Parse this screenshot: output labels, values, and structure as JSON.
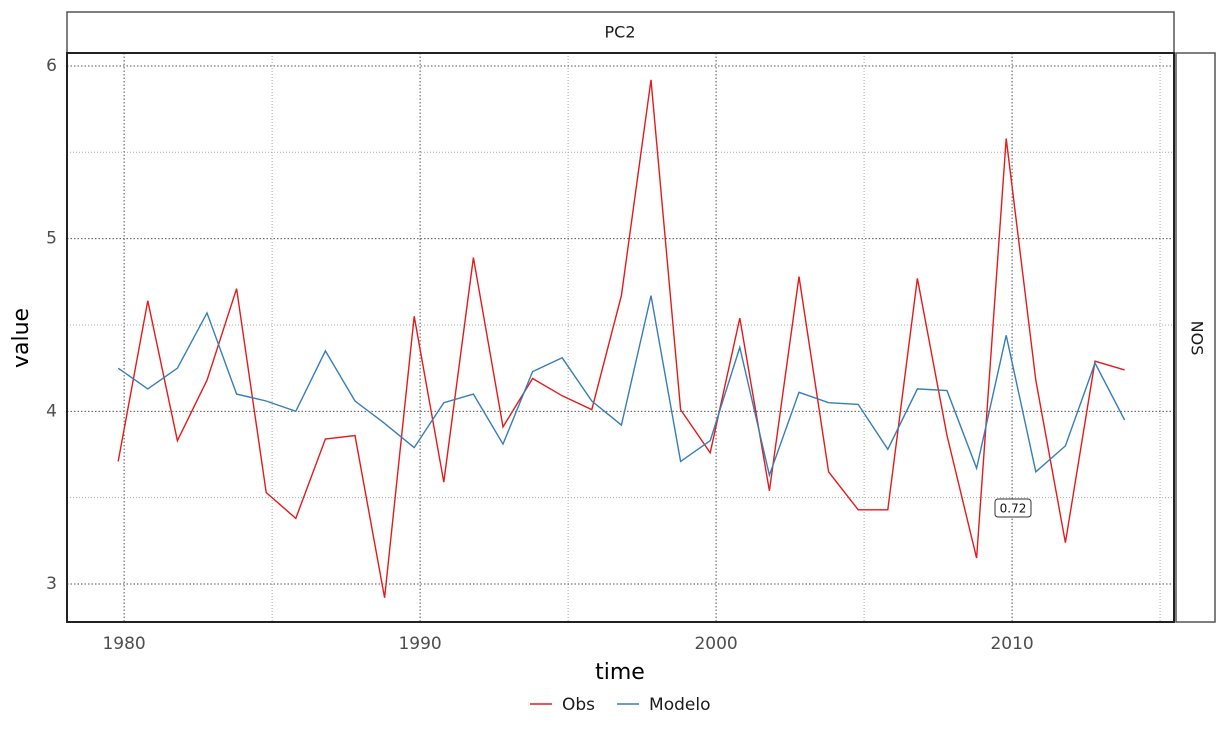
{
  "chart_data": {
    "type": "line",
    "facet_top": "PC2",
    "facet_right": "NOS",
    "xlabel": "time",
    "ylabel": "value",
    "x": [
      1979.8,
      1980.8,
      1981.8,
      1982.8,
      1983.8,
      1984.8,
      1985.8,
      1986.8,
      1987.8,
      1988.8,
      1989.8,
      1990.8,
      1991.8,
      1992.8,
      1993.8,
      1994.8,
      1995.8,
      1996.8,
      1997.8,
      1998.8,
      1999.8,
      2000.8,
      2001.8,
      2002.8,
      2003.8,
      2004.8,
      2005.8,
      2006.8,
      2007.8,
      2008.8,
      2009.8,
      2010.8,
      2011.8,
      2012.8,
      2013.8
    ],
    "series": [
      {
        "name": "Obs",
        "color": "#e41a1c",
        "values": [
          3.71,
          4.64,
          3.83,
          4.18,
          4.71,
          3.53,
          3.38,
          3.84,
          3.86,
          2.92,
          4.55,
          3.59,
          4.89,
          3.91,
          4.19,
          4.09,
          4.01,
          4.67,
          5.92,
          4.01,
          3.76,
          4.54,
          3.54,
          4.78,
          3.65,
          3.43,
          3.43,
          4.77,
          3.86,
          3.15,
          5.58,
          4.18,
          3.24,
          4.29,
          4.24
        ]
      },
      {
        "name": "Modelo",
        "color": "#377eb8",
        "values": [
          4.25,
          4.13,
          4.25,
          4.57,
          4.1,
          4.06,
          4.0,
          4.35,
          4.06,
          3.93,
          3.79,
          4.05,
          4.1,
          3.81,
          4.23,
          4.31,
          4.06,
          3.92,
          4.67,
          3.71,
          3.83,
          4.37,
          3.63,
          4.11,
          4.05,
          4.04,
          3.78,
          4.13,
          4.12,
          3.67,
          4.44,
          3.65,
          3.8,
          4.28,
          3.95
        ]
      }
    ],
    "annotation": "0.72",
    "xlim": [
      1978.07,
      2015.47
    ],
    "ylim": [
      2.78,
      6.075
    ],
    "xticks": [
      1980,
      1990,
      2000,
      2010
    ],
    "yticks": [
      3,
      4,
      5,
      6
    ],
    "xminorticks": [
      1985,
      1995,
      2005,
      2015
    ],
    "yminorticks": [
      3.5,
      4.5,
      5.5
    ],
    "grid": true,
    "legend": "bottom"
  }
}
